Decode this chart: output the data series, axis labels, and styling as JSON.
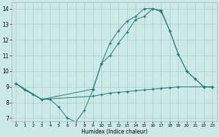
{
  "xlabel": "Humidex (Indice chaleur)",
  "xlim": [
    -0.5,
    23.5
  ],
  "ylim": [
    6.8,
    14.4
  ],
  "yticks": [
    7,
    8,
    9,
    10,
    11,
    12,
    13,
    14
  ],
  "xticks": [
    0,
    1,
    2,
    3,
    4,
    5,
    6,
    7,
    8,
    9,
    10,
    11,
    12,
    13,
    14,
    15,
    16,
    17,
    18,
    19,
    20,
    21,
    22,
    23
  ],
  "bg_color": "#cce8e8",
  "grid_color": "#aacccc",
  "line_color": "#1a7a6e",
  "line1_x": [
    0,
    1,
    2,
    3,
    4,
    5,
    6,
    7,
    8,
    9,
    10,
    11,
    12,
    13,
    14,
    15,
    16,
    17,
    18,
    19,
    20,
    21,
    22,
    23
  ],
  "line1_y": [
    9.2,
    8.8,
    8.5,
    8.2,
    8.2,
    7.7,
    7.0,
    6.75,
    7.5,
    8.8,
    10.5,
    11.8,
    12.6,
    13.2,
    13.5,
    14.0,
    14.0,
    13.8,
    12.6,
    11.1,
    10.0,
    9.5,
    9.0,
    9.0
  ],
  "line2_x": [
    0,
    3,
    9,
    10,
    11,
    12,
    13,
    14,
    15,
    16,
    17,
    18,
    19,
    20,
    21,
    22,
    23
  ],
  "line2_y": [
    9.2,
    8.2,
    8.85,
    10.5,
    11.0,
    11.8,
    12.5,
    13.3,
    13.5,
    14.0,
    13.9,
    12.6,
    11.1,
    10.0,
    9.5,
    9.0,
    9.0
  ],
  "line3_x": [
    0,
    3,
    9,
    10,
    11,
    12,
    13,
    14,
    15,
    16,
    17,
    18,
    19,
    22,
    23
  ],
  "line3_y": [
    9.2,
    8.2,
    8.4,
    8.5,
    8.6,
    8.65,
    8.7,
    8.75,
    8.8,
    8.85,
    8.9,
    8.95,
    9.0,
    9.0,
    9.0
  ]
}
